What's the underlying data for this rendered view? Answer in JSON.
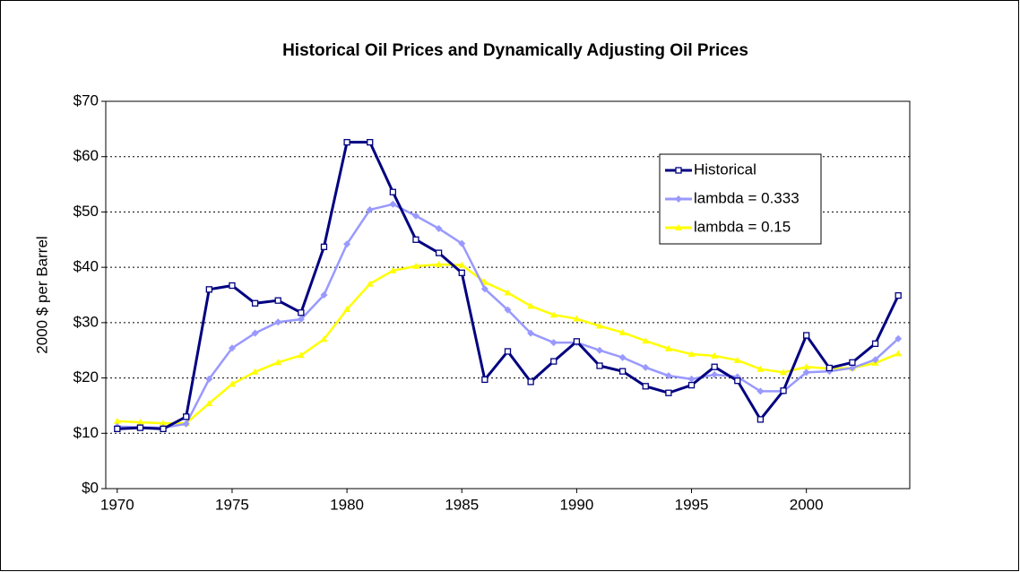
{
  "chart_data": {
    "type": "line",
    "title": "Historical Oil Prices and Dynamically Adjusting Oil Prices",
    "y_label": "2000 $ per Barrel",
    "x": [
      1970,
      1971,
      1972,
      1973,
      1974,
      1975,
      1976,
      1977,
      1978,
      1979,
      1980,
      1981,
      1982,
      1983,
      1984,
      1985,
      1986,
      1987,
      1988,
      1989,
      1990,
      1991,
      1992,
      1993,
      1994,
      1995,
      1996,
      1997,
      1998,
      1999,
      2000,
      2001,
      2002,
      2003,
      2004
    ],
    "series": [
      {
        "name": "Historical",
        "color": "#000080",
        "marker": "square",
        "values": [
          10.8,
          11,
          10.8,
          13,
          36,
          36.7,
          33.5,
          34,
          31.8,
          43.7,
          62.6,
          62.6,
          53.6,
          45,
          42.6,
          39,
          19.7,
          24.8,
          19.3,
          23,
          26.6,
          22.2,
          21.2,
          18.5,
          17.3,
          18.7,
          22,
          19.5,
          12.5,
          17.7,
          27.7,
          21.8,
          22.8,
          26.2,
          34.9
        ]
      },
      {
        "name": "lambda = 0.333",
        "color": "#9999ff",
        "marker": "diamond",
        "values": [
          11.2,
          11.1,
          11.0,
          11.7,
          19.8,
          25.4,
          28.1,
          30.1,
          30.6,
          35.0,
          44.2,
          50.4,
          51.4,
          49.3,
          47.0,
          44.3,
          36.1,
          32.3,
          28.1,
          26.4,
          26.4,
          25.0,
          23.7,
          21.9,
          20.4,
          19.8,
          20.6,
          20.2,
          17.6,
          17.6,
          21.0,
          21.2,
          21.8,
          23.3,
          27.1
        ]
      },
      {
        "name": "lambda = 0.15",
        "color": "#ffff00",
        "marker": "triangle",
        "values": [
          12.2,
          12.0,
          11.8,
          11.8,
          15.4,
          18.9,
          21.1,
          22.8,
          24.1,
          27.0,
          32.4,
          37.0,
          39.4,
          40.2,
          40.5,
          40.4,
          37.3,
          35.4,
          33.0,
          31.4,
          30.7,
          29.4,
          28.2,
          26.7,
          25.3,
          24.3,
          24.0,
          23.2,
          21.6,
          21.0,
          22.0,
          21.7,
          21.8,
          22.7,
          24.4
        ]
      }
    ],
    "xlim": [
      1969.5,
      2004.5
    ],
    "xticks": [
      1970,
      1975,
      1980,
      1985,
      1990,
      1995,
      2000
    ],
    "ylim": [
      0,
      70
    ],
    "yticks": [
      {
        "value": 0,
        "label": "$0"
      },
      {
        "value": 10,
        "label": "$10"
      },
      {
        "value": 20,
        "label": "$20"
      },
      {
        "value": 30,
        "label": "$30"
      },
      {
        "value": 40,
        "label": "$40"
      },
      {
        "value": 50,
        "label": "$50"
      },
      {
        "value": 60,
        "label": "$60"
      },
      {
        "value": 70,
        "label": "$70"
      }
    ],
    "grid": true,
    "legend": "upper right"
  }
}
